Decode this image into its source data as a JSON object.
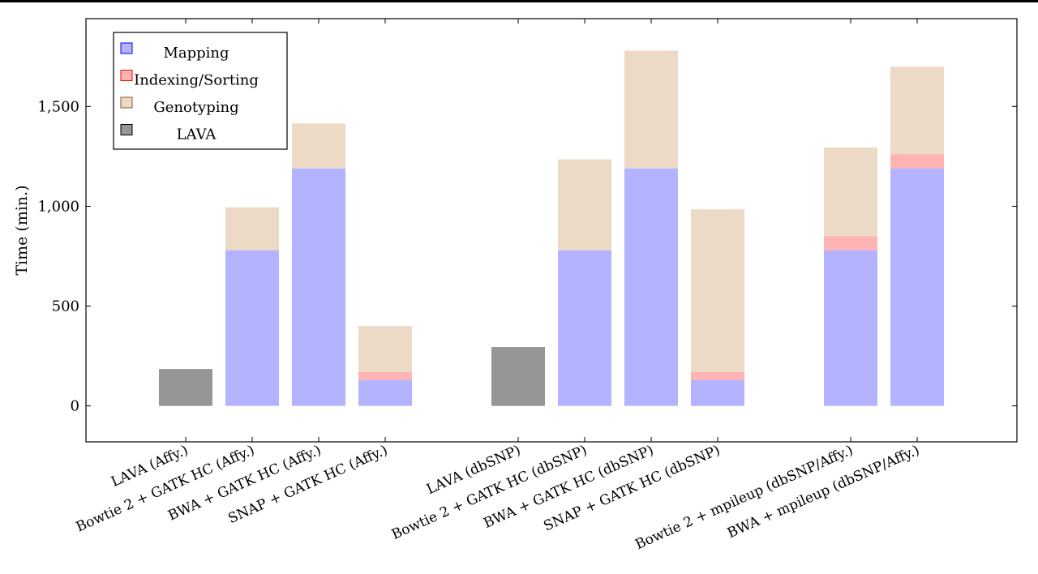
{
  "chart_data": {
    "type": "bar",
    "stacked": true,
    "ylabel": "Time (min.)",
    "ylim": [
      -180,
      1940
    ],
    "yticks": [
      0,
      500,
      1000,
      1500
    ],
    "ytick_labels": [
      "0",
      "500",
      "1,000",
      "1,500"
    ],
    "categories": [
      "LAVA (Affy.)",
      "Bowtie 2 + GATK HC (Affy.)",
      "BWA + GATK HC (Affy.)",
      "SNAP + GATK HC (Affy.)",
      "LAVA (dbSNP)",
      "Bowtie 2 + GATK HC (dbSNP)",
      "BWA + GATK HC (dbSNP)",
      "SNAP + GATK HC (dbSNP)",
      "Bowtie 2 + mpileup (dbSNP/Affy.)",
      "BWA + mpileup (dbSNP/Affy.)"
    ],
    "x": [
      1,
      2,
      3,
      4,
      6,
      7,
      8,
      9,
      11,
      12
    ],
    "xlim": [
      -0.5,
      13.5
    ],
    "series": [
      {
        "name": "Mapping",
        "color": "#b3b3ff",
        "legend_edge": "#0000ff",
        "values": [
          0,
          780,
          1190,
          130,
          0,
          780,
          1190,
          130,
          780,
          1190
        ]
      },
      {
        "name": "Indexing/Sorting",
        "color": "#ffb3b3",
        "legend_edge": "#ff0000",
        "values": [
          0,
          0,
          0,
          40,
          0,
          0,
          0,
          40,
          70,
          70
        ]
      },
      {
        "name": "Genotyping",
        "color": "#ecdac7",
        "legend_edge": "#8b5a2b",
        "values": [
          0,
          215,
          225,
          230,
          0,
          455,
          590,
          815,
          445,
          440
        ]
      },
      {
        "name": "LAVA",
        "color": "#969696",
        "legend_edge": "#000000",
        "values": [
          185,
          0,
          0,
          0,
          295,
          0,
          0,
          0,
          0,
          0
        ]
      }
    ],
    "grid": false,
    "legend_position": "top-left"
  }
}
